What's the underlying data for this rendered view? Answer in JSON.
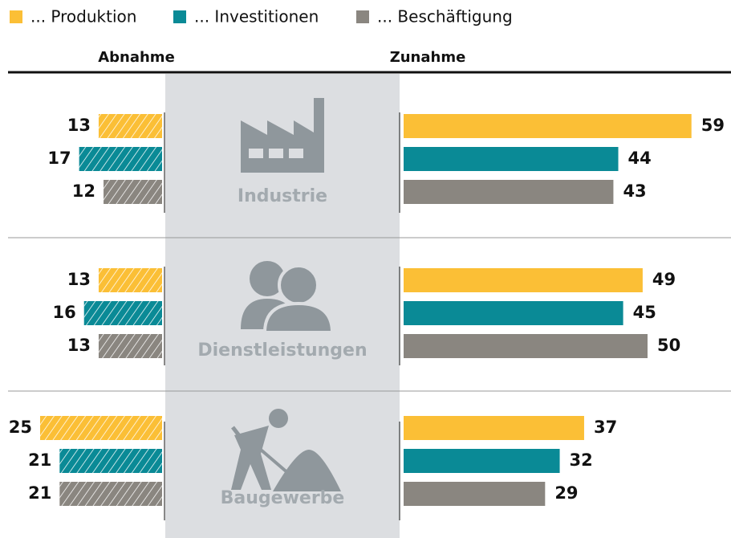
{
  "chart_data": {
    "type": "bar",
    "legend": "top",
    "headers": {
      "left": "Abnahme",
      "right": "Zunahme"
    },
    "categories": [
      "Industrie",
      "Dienstleistungen",
      "Baugewerbe"
    ],
    "series": [
      {
        "name": "... Produktion",
        "color": "#fbbf36",
        "decrease": [
          13,
          13,
          25
        ],
        "increase": [
          59,
          49,
          37
        ]
      },
      {
        "name": "... Investitionen",
        "color": "#0a8a96",
        "decrease": [
          17,
          16,
          21
        ],
        "increase": [
          44,
          45,
          32
        ]
      },
      {
        "name": "... Beschäftigung",
        "color": "#8a8680",
        "decrease": [
          12,
          13,
          21
        ],
        "increase": [
          43,
          50,
          29
        ]
      }
    ]
  }
}
